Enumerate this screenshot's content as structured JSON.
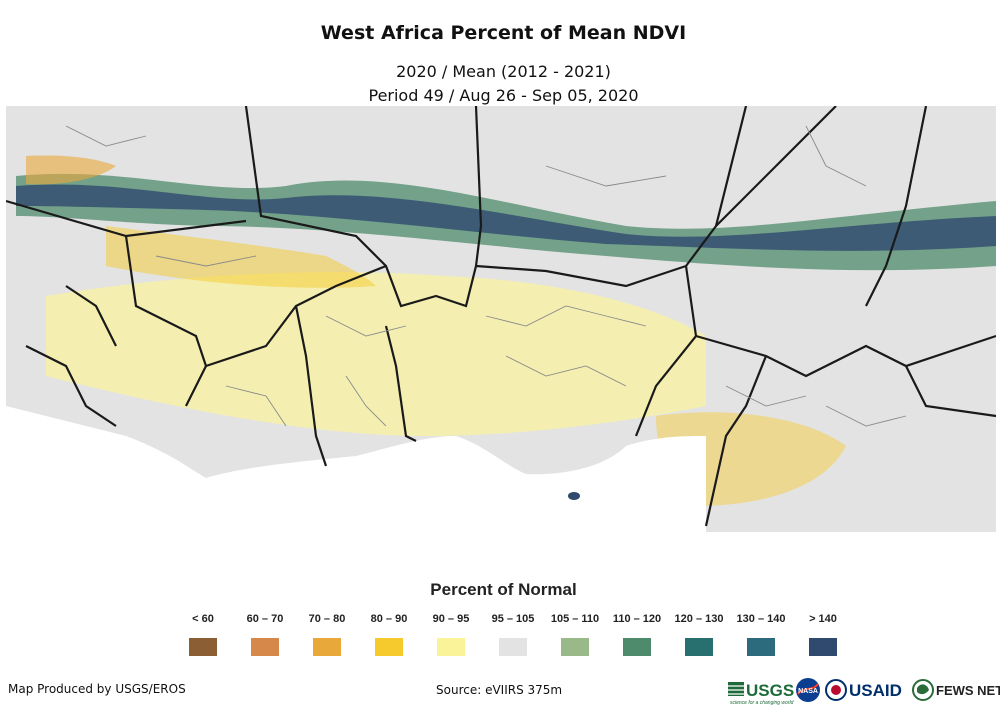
{
  "header": {
    "title": "West Africa Percent of Mean NDVI",
    "subtitle_line1": "2020 / Mean (2012 - 2021)",
    "subtitle_line2": "Period 49 / Aug 26 - Sep 05, 2020"
  },
  "legend": {
    "title": "Percent of Normal",
    "classes": [
      {
        "label": "< 60",
        "color": "#8b5e34"
      },
      {
        "label": "60 – 70",
        "color": "#d5884a"
      },
      {
        "label": "70 – 80",
        "color": "#e9a93a"
      },
      {
        "label": "80 – 90",
        "color": "#f6c92c"
      },
      {
        "label": "90 – 95",
        "color": "#fbf39a"
      },
      {
        "label": "95 – 105",
        "color": "#e3e3e3"
      },
      {
        "label": "105 – 110",
        "color": "#9ab989"
      },
      {
        "label": "110 – 120",
        "color": "#4e8b6c"
      },
      {
        "label": "120 – 130",
        "color": "#27706f"
      },
      {
        "label": "130 – 140",
        "color": "#2c6a7d"
      },
      {
        "label": "> 140",
        "color": "#2f4a6e"
      }
    ]
  },
  "footer": {
    "produced_by": "Map Produced by USGS/EROS",
    "source": "Source: eVIIRS 375m",
    "logos": [
      "USGS",
      "NASA",
      "USAID",
      "FEWS NET"
    ],
    "usgs_tagline": "science for a changing world"
  },
  "map": {
    "region": "West Africa",
    "ocean_color": "#ffffff",
    "border_color": "#1a1a1a",
    "subborder_color": "#8a8a8a"
  }
}
